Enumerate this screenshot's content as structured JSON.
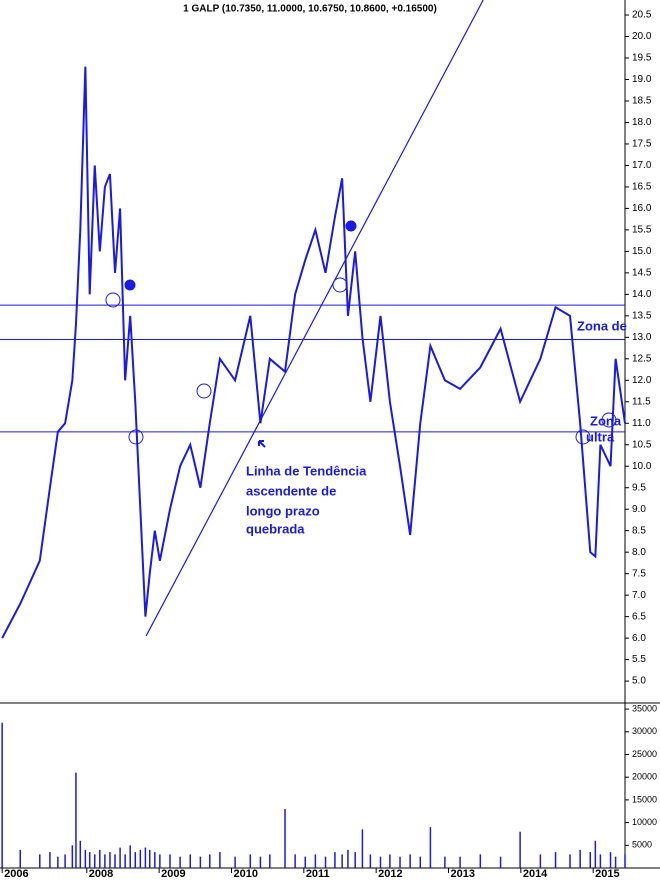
{
  "chart_data": {
    "type": "line",
    "title": "1 GALP (10.7350, 11.0000, 10.6750, 10.8600, +0.16500)",
    "x": [
      2006.83,
      2007.08,
      2007.35,
      2007.49,
      2007.6,
      2007.7,
      2007.8,
      2007.85,
      2007.91,
      2007.98,
      2008.04,
      2008.11,
      2008.18,
      2008.25,
      2008.32,
      2008.39,
      2008.46,
      2008.53,
      2008.6,
      2008.67,
      2008.74,
      2008.81,
      2008.87,
      2008.94,
      2009.01,
      2009.15,
      2009.29,
      2009.43,
      2009.57,
      2009.7,
      2009.84,
      2010.05,
      2010.26,
      2010.4,
      2010.53,
      2010.74,
      2010.88,
      2011.02,
      2011.16,
      2011.3,
      2011.43,
      2011.53,
      2011.61,
      2011.71,
      2011.81,
      2011.92,
      2012.06,
      2012.19,
      2012.33,
      2012.47,
      2012.61,
      2012.75,
      2012.95,
      2013.16,
      2013.44,
      2013.72,
      2013.99,
      2014.27,
      2014.48,
      2014.68,
      2014.82,
      2014.96,
      2015.03,
      2015.1,
      2015.24,
      2015.31,
      2015.44
    ],
    "series": [
      {
        "name": "GALP",
        "color": "#1a1ae6",
        "values": [
          6.0,
          6.8,
          7.8,
          9.5,
          10.8,
          11.0,
          12.0,
          13.3,
          15.5,
          19.3,
          14.0,
          17.0,
          15.0,
          16.5,
          16.8,
          14.5,
          16.0,
          12.0,
          13.5,
          11.5,
          9.0,
          6.5,
          7.5,
          8.5,
          7.8,
          9.0,
          10.0,
          10.5,
          9.5,
          11.0,
          12.5,
          12.0,
          13.5,
          11.0,
          12.5,
          12.2,
          14.0,
          14.8,
          15.5,
          14.5,
          15.8,
          16.7,
          13.5,
          15.0,
          13.0,
          11.5,
          13.5,
          11.5,
          10.0,
          8.4,
          11.0,
          12.8,
          12.0,
          11.8,
          12.3,
          13.2,
          11.5,
          12.5,
          13.7,
          13.5,
          11.0,
          8.0,
          7.9,
          10.5,
          10.0,
          12.5,
          11.0
        ]
      },
      {
        "name": "Volume",
        "color": "#1a1ae6",
        "axis": "y2",
        "values": [
          32000,
          4000,
          3000,
          3500,
          2500,
          3000,
          5000,
          21000,
          6000,
          4000,
          3500,
          3000,
          4000,
          3000,
          3500,
          3000,
          4500,
          3000,
          5000,
          3500,
          4000,
          4500,
          4000,
          3500,
          3000,
          3000,
          2500,
          3000,
          2500,
          3000,
          3500,
          2500,
          3000,
          2500,
          3000,
          13000,
          3000,
          2500,
          3000,
          2500,
          3500,
          3000,
          4000,
          3500,
          8500,
          3000,
          2500,
          3000,
          2500,
          3000,
          2500,
          9000,
          2500,
          2500,
          3000,
          2500,
          8000,
          3000,
          3500,
          3000,
          4000,
          3500,
          6000,
          3000,
          3500,
          2500,
          3000
        ]
      }
    ],
    "xlim": [
      2006.8,
      2015.44
    ],
    "xticks": [
      {
        "value": 2006.83,
        "label": "2006"
      },
      2008,
      2009,
      2010,
      2011,
      2012,
      2013,
      2014,
      2015
    ],
    "ylim": [
      4.49,
      20.85
    ],
    "yticks": [
      {
        "value": 5,
        "label": "5.0"
      },
      5.5,
      {
        "value": 6,
        "label": "6.0"
      },
      6.5,
      {
        "value": 7,
        "label": "7.0"
      },
      7.5,
      {
        "value": 8,
        "label": "8.0"
      },
      8.5,
      {
        "value": 9,
        "label": "9.0"
      },
      9.5,
      {
        "value": 10,
        "label": "10.0"
      },
      10.5,
      {
        "value": 11,
        "label": "11.0"
      },
      11.5,
      {
        "value": 12,
        "label": "12.0"
      },
      12.5,
      {
        "value": 13,
        "label": "13.0"
      },
      13.5,
      {
        "value": 14,
        "label": "14.0"
      },
      14.5,
      {
        "value": 15,
        "label": "15.0"
      },
      15.5,
      {
        "value": 16,
        "label": "16.0"
      },
      16.5,
      {
        "value": 17,
        "label": "17.0"
      },
      17.5,
      {
        "value": 18,
        "label": "18.0"
      },
      18.5,
      {
        "value": 19,
        "label": "19.0"
      },
      19.5,
      {
        "value": 20,
        "label": "20.0"
      },
      20.5
    ],
    "y2lim": [
      0,
      35900
    ],
    "y2ticks": [
      5000,
      10000,
      15000,
      20000,
      25000,
      30000,
      35000
    ],
    "hlines": [
      13.75,
      12.95,
      10.8
    ],
    "trendline": {
      "x": [
        2008.82,
        2013.48
      ],
      "y": [
        6.05,
        20.85
      ]
    },
    "annotations": [
      "Linha de Tendência",
      "ascendente de",
      "longo prazo",
      "quebrada",
      "Zona de",
      "Zona",
      "ultra"
    ]
  }
}
